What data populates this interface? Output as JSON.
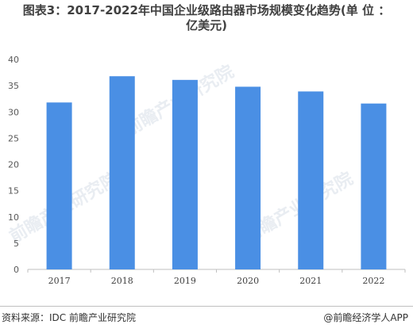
{
  "title_line1": "图表3：2017-2022年中国企业级路由器市场规模变化趋势(单 位 ：",
  "title_line2": "亿美元)",
  "source": "资料来源：IDC 前瞻产业研究院",
  "brand": "@前瞻经济学人APP",
  "watermark_text": "前瞻产业研究院",
  "chart_data": {
    "type": "bar",
    "title": "图表3：2017-2022年中国企业级路由器市场规模变化趋势(单 位 ：亿美元)",
    "categories": [
      "2017",
      "2018",
      "2019",
      "2020",
      "2021",
      "2022"
    ],
    "values": [
      31.8,
      36.8,
      36.1,
      34.8,
      33.9,
      31.6
    ],
    "ylim": [
      0,
      40
    ],
    "yticks": [
      0,
      5,
      10,
      15,
      20,
      25,
      30,
      35,
      40
    ],
    "bar_color": "#4a8fe4",
    "grid": false,
    "legend": "none",
    "xlabel": "",
    "ylabel": ""
  }
}
